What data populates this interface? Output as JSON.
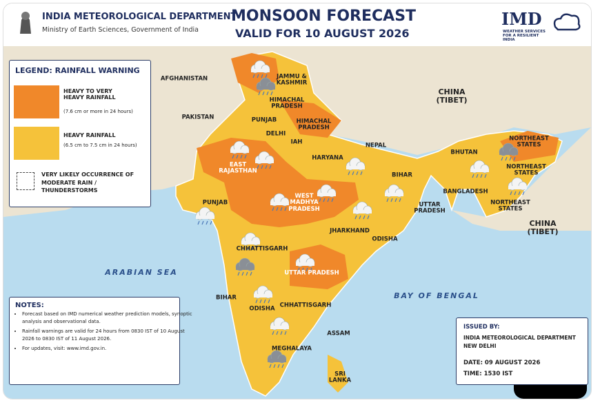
{
  "header": {
    "department": "INDIA METEOROLOGICAL DEPARTMENT",
    "ministry": "Ministry of Earth Sciences, Government of India",
    "title": "MONSOON FORECAST",
    "subtitle": "VALID FOR 10 AUGUST 2026",
    "logo": "IMD",
    "logo_tagline": "WEATHER SERVICES FOR A RESILIENT INDIA"
  },
  "legend": {
    "title": "LEGEND: RAINFALL WARNING",
    "items": [
      {
        "label": "HEAVY TO VERY HEAVY RAINFALL",
        "note": "(7.6 cm or more in 24 hours)"
      },
      {
        "label": "HEAVY RAINFALL",
        "note": "(6.5 cm to 7.5 cm in 24 hours)"
      },
      {
        "label": "VERY LIKELY OCCURRENCE OF MODERATE RAIN / THUNDERSTORMS"
      }
    ]
  },
  "map_labels": [
    "AFGHANISTAN",
    "PAKISTAN",
    "CHINA (TIBET)",
    "NEPAL",
    "BHUTAN",
    "BANGLADESH",
    "CHINA (TIBET)",
    "ARABIAN SEA",
    "BAY OF BENGAL",
    "SRI LANKA",
    "JAMMU & KASHMIR",
    "HIMACHAL PRADESH",
    "PUNJAB",
    "HIMACHAL PRADESH",
    "DELHI",
    "IAH",
    "HARYANA",
    "EAST RAJASTHAN",
    "WEST MADHYA PRADESH",
    "BIHAR",
    "UTTAR PRADESH",
    "NORTHEAST STATES",
    "NORTHEAST STATES",
    "NORTHEAST STATES",
    "PUNJAB",
    "JHARKHAND",
    "ODISHA",
    "CHHATTISGARH",
    "UTTAR PRADESH",
    "BIHAR",
    "ODISHA",
    "CHHATTISGARH",
    "ASSAM",
    "MEGHALAYA"
  ],
  "notes": {
    "title": "NOTES:",
    "items": [
      "Forecast based on IMD numerical weather prediction models, synoptic analysis and observational data.",
      "Rainfall warnings are valid for 24 hours from 0830 IST of 10 August 2026 to 0830 IST of 11 August 2026.",
      "For updates, visit: www.imd.gov.in."
    ]
  },
  "issued": {
    "title": "ISSUED BY:",
    "org": "INDIA METEOROLOGICAL DEPARTMENT",
    "place": "NEW DELHI",
    "date": "DATE: 09 AUGUST 2026",
    "time": "TIME: 1530 IST"
  }
}
